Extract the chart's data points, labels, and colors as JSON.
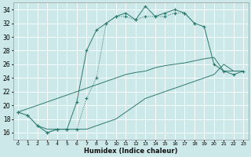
{
  "xlabel": "Humidex (Indice chaleur)",
  "bg_color": "#cce8e8",
  "line_color": "#2d7a6e",
  "grid_color": "#ffffff",
  "xlim": [
    -0.5,
    23.5
  ],
  "ylim": [
    15,
    35
  ],
  "xticks": [
    0,
    1,
    2,
    3,
    4,
    5,
    6,
    7,
    8,
    9,
    10,
    11,
    12,
    13,
    14,
    15,
    16,
    17,
    18,
    19,
    20,
    21,
    22,
    23
  ],
  "yticks": [
    16,
    18,
    20,
    22,
    24,
    26,
    28,
    30,
    32,
    34
  ],
  "line_dotted_x": [
    0,
    1,
    2,
    3,
    4,
    5,
    6,
    7,
    8,
    9,
    10,
    11,
    12,
    13,
    14,
    15,
    16,
    17,
    18
  ],
  "line_dotted_y": [
    19,
    18.5,
    17,
    16,
    16.5,
    16.5,
    16.5,
    21,
    24,
    32,
    33,
    33,
    32.5,
    33,
    33,
    33,
    33.5,
    33.5,
    32
  ],
  "line_solid_markers_x": [
    0,
    1,
    2,
    3,
    4,
    5,
    6,
    7,
    8,
    9,
    10,
    11,
    12,
    13,
    14,
    15,
    16,
    17,
    18,
    19,
    20,
    21,
    22,
    23
  ],
  "line_solid_markers_y": [
    19,
    18.5,
    17,
    16,
    16.5,
    16.5,
    20.5,
    28,
    31,
    32,
    33,
    33.5,
    32.5,
    34.5,
    33,
    33.5,
    34,
    33.5,
    32,
    31.5,
    26,
    25,
    24.5,
    25
  ],
  "line_diag1_x": [
    0,
    1,
    2,
    3,
    4,
    5,
    6,
    7,
    8,
    9,
    10,
    11,
    12,
    13,
    14,
    15,
    16,
    17,
    18,
    19,
    20,
    21,
    22,
    23
  ],
  "line_diag1_y": [
    19,
    19.5,
    20,
    20.5,
    21,
    21.5,
    22,
    22.5,
    23,
    23.5,
    24,
    24.5,
    24.8,
    25,
    25.5,
    25.8,
    26,
    26.2,
    26.5,
    26.8,
    27,
    25,
    25,
    25
  ],
  "line_diag2_x": [
    2,
    3,
    4,
    5,
    6,
    7,
    8,
    9,
    10,
    11,
    12,
    13,
    14,
    15,
    16,
    17,
    18,
    19,
    20,
    21,
    22,
    23
  ],
  "line_diag2_y": [
    17,
    16.5,
    16.5,
    16.5,
    16.5,
    16.5,
    17,
    17.5,
    18,
    19,
    20,
    21,
    21.5,
    22,
    22.5,
    23,
    23.5,
    24,
    24.5,
    26,
    25,
    25
  ]
}
